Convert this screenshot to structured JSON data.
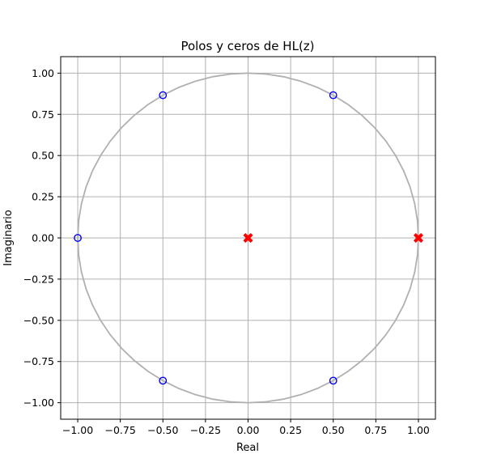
{
  "chart_data": {
    "type": "scatter",
    "title": "Polos y ceros de HL(z)",
    "xlabel": "Real",
    "ylabel": "Imaginario",
    "xlim": [
      -1.1,
      1.1
    ],
    "ylim": [
      -1.1,
      1.1
    ],
    "xticks": [
      "−1.00",
      "−0.75",
      "−0.50",
      "−0.25",
      "0.00",
      "0.25",
      "0.50",
      "0.75",
      "1.00"
    ],
    "yticks": [
      "1.00",
      "0.75",
      "0.50",
      "0.25",
      "0.00",
      "−0.25",
      "−0.50",
      "−0.75",
      "−1.00"
    ],
    "grid": true,
    "unit_circle": {
      "radius": 1,
      "color": "#b0b0b0"
    },
    "series": [
      {
        "marker": "circle-open",
        "color": "#0000ff",
        "points": [
          [
            -1.0,
            0.0
          ],
          [
            -0.5,
            0.866
          ],
          [
            0.5,
            0.866
          ],
          [
            0.5,
            -0.866
          ],
          [
            -0.5,
            -0.866
          ]
        ]
      },
      {
        "marker": "x-filled",
        "color": "#ff0000",
        "points": [
          [
            0.0,
            0.0
          ],
          [
            1.0,
            0.0
          ]
        ]
      }
    ]
  }
}
